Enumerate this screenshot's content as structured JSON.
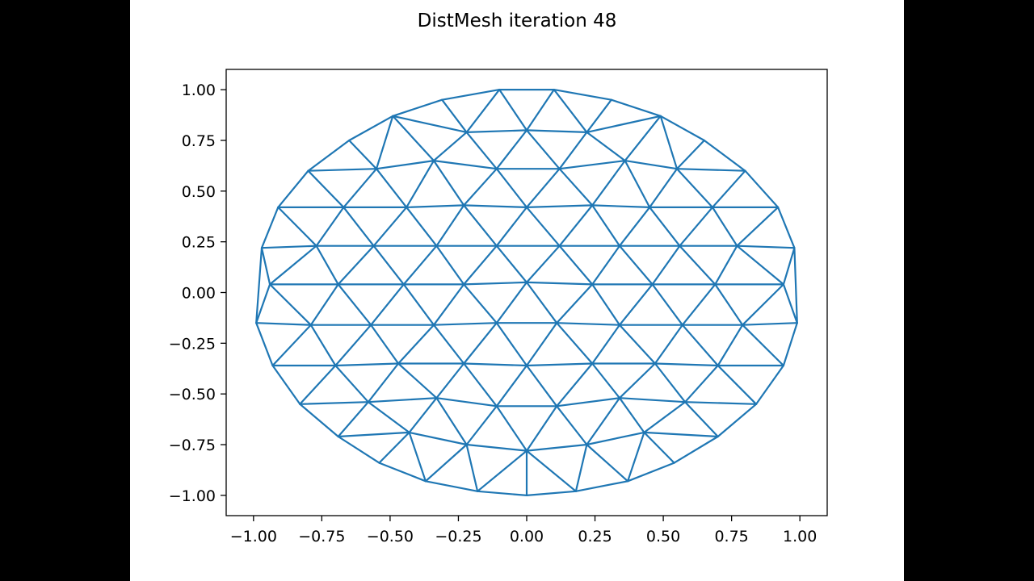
{
  "chart_data": {
    "type": "mesh",
    "title": "DistMesh iteration 48",
    "xlabel": "",
    "ylabel": "",
    "xlim": [
      -1.1,
      1.1
    ],
    "ylim": [
      -1.1,
      1.1
    ],
    "xticks": [
      -1.0,
      -0.75,
      -0.5,
      -0.25,
      0.0,
      0.25,
      0.5,
      0.75,
      1.0
    ],
    "xtick_labels": [
      "−1.00",
      "−0.75",
      "−0.50",
      "−0.25",
      "0.00",
      "0.25",
      "0.50",
      "0.75",
      "1.00"
    ],
    "yticks": [
      1.0,
      0.75,
      0.5,
      0.25,
      0.0,
      -0.25,
      -0.5,
      -0.75,
      -1.0
    ],
    "ytick_labels": [
      "1.00",
      "0.75",
      "0.50",
      "0.25",
      "0.00",
      "−0.25",
      "−0.50",
      "−0.75",
      "−1.00"
    ],
    "grid": false,
    "line_color": "#1f77b4",
    "nodes": [
      [
        -0.1,
        1.0
      ],
      [
        0.1,
        1.0
      ],
      [
        -0.31,
        0.95
      ],
      [
        0.31,
        0.95
      ],
      [
        -0.49,
        0.87
      ],
      [
        0.49,
        0.87
      ],
      [
        -0.22,
        0.79
      ],
      [
        0.0,
        0.8
      ],
      [
        0.22,
        0.79
      ],
      [
        -0.65,
        0.75
      ],
      [
        0.65,
        0.75
      ],
      [
        -0.34,
        0.65
      ],
      [
        0.36,
        0.65
      ],
      [
        -0.8,
        0.6
      ],
      [
        -0.55,
        0.61
      ],
      [
        -0.11,
        0.61
      ],
      [
        0.12,
        0.61
      ],
      [
        0.55,
        0.61
      ],
      [
        0.8,
        0.6
      ],
      [
        -0.91,
        0.42
      ],
      [
        -0.67,
        0.42
      ],
      [
        -0.44,
        0.42
      ],
      [
        -0.23,
        0.43
      ],
      [
        0.0,
        0.42
      ],
      [
        0.24,
        0.43
      ],
      [
        0.45,
        0.42
      ],
      [
        0.68,
        0.42
      ],
      [
        0.92,
        0.42
      ],
      [
        -0.97,
        0.22
      ],
      [
        -0.77,
        0.23
      ],
      [
        -0.56,
        0.23
      ],
      [
        -0.33,
        0.23
      ],
      [
        -0.11,
        0.23
      ],
      [
        0.12,
        0.23
      ],
      [
        0.34,
        0.23
      ],
      [
        0.56,
        0.23
      ],
      [
        0.77,
        0.23
      ],
      [
        0.98,
        0.22
      ],
      [
        -0.94,
        0.04
      ],
      [
        -0.69,
        0.04
      ],
      [
        -0.45,
        0.04
      ],
      [
        -0.23,
        0.04
      ],
      [
        0.0,
        0.05
      ],
      [
        0.24,
        0.04
      ],
      [
        0.46,
        0.04
      ],
      [
        0.69,
        0.04
      ],
      [
        0.94,
        0.04
      ],
      [
        -0.99,
        -0.15
      ],
      [
        -0.79,
        -0.16
      ],
      [
        -0.57,
        -0.16
      ],
      [
        -0.34,
        -0.16
      ],
      [
        -0.11,
        -0.15
      ],
      [
        0.11,
        -0.15
      ],
      [
        0.34,
        -0.16
      ],
      [
        0.57,
        -0.16
      ],
      [
        0.79,
        -0.16
      ],
      [
        0.99,
        -0.15
      ],
      [
        -0.93,
        -0.36
      ],
      [
        -0.7,
        -0.36
      ],
      [
        -0.47,
        -0.35
      ],
      [
        -0.23,
        -0.35
      ],
      [
        0.0,
        -0.36
      ],
      [
        0.24,
        -0.35
      ],
      [
        0.47,
        -0.35
      ],
      [
        0.7,
        -0.36
      ],
      [
        0.94,
        -0.36
      ],
      [
        -0.83,
        -0.55
      ],
      [
        -0.58,
        -0.54
      ],
      [
        -0.33,
        -0.52
      ],
      [
        -0.11,
        -0.56
      ],
      [
        0.11,
        -0.56
      ],
      [
        0.34,
        -0.52
      ],
      [
        0.58,
        -0.54
      ],
      [
        0.84,
        -0.55
      ],
      [
        -0.69,
        -0.71
      ],
      [
        -0.43,
        -0.69
      ],
      [
        -0.22,
        -0.75
      ],
      [
        0.22,
        -0.75
      ],
      [
        0.43,
        -0.69
      ],
      [
        0.7,
        -0.71
      ],
      [
        -0.54,
        -0.84
      ],
      [
        0.54,
        -0.84
      ],
      [
        0.0,
        -0.78
      ],
      [
        -0.37,
        -0.93
      ],
      [
        -0.18,
        -0.98
      ],
      [
        0.0,
        -1.0
      ],
      [
        0.18,
        -0.98
      ],
      [
        0.37,
        -0.93
      ]
    ]
  }
}
